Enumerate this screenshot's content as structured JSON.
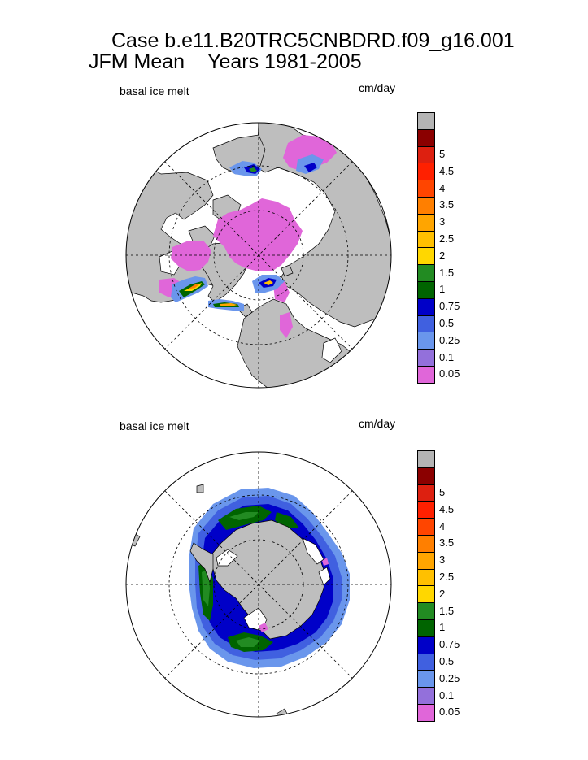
{
  "title": {
    "line1": "Case b.e11.B20TRC5CNBDRD.f09_g16.001",
    "line2_season": "JFM Mean",
    "line2_years": "Years 1981-2005"
  },
  "panels": [
    {
      "name": "north",
      "label": "basal ice melt",
      "units": "cm/day",
      "hemisphere": "Northern"
    },
    {
      "name": "south",
      "label": "basal ice melt",
      "units": "cm/day",
      "hemisphere": "Southern"
    }
  ],
  "colors": {
    "land": "#bebebe",
    "colorbar": [
      "#e066d9",
      "#9370db",
      "#6a96ec",
      "#4060e0",
      "#0000c8",
      "#006400",
      "#228b22",
      "#ffd700",
      "#ffc000",
      "#ffa500",
      "#ff7f00",
      "#ff4500",
      "#ff2000",
      "#dd2010",
      "#8b0000",
      "#b4b4b4"
    ]
  },
  "chart_data": [
    {
      "type": "heatmap",
      "title": "basal ice melt",
      "projection": "north polar stereographic",
      "units": "cm/day",
      "levels": [
        "0.05",
        "0.1",
        "0.25",
        "0.5",
        "0.75",
        "1",
        "1.5",
        "2",
        "2.5",
        "3",
        "3.5",
        "4",
        "4.5",
        "5"
      ],
      "summary": "Arctic basin mostly 0.05 cm/day; higher melt (up to ~3 cm/day) along Labrador Sea, Greenland coast and Barents/Kara ice edge"
    },
    {
      "type": "heatmap",
      "title": "basal ice melt",
      "projection": "south polar stereographic",
      "units": "cm/day",
      "levels": [
        "0.05",
        "0.1",
        "0.25",
        "0.5",
        "0.75",
        "1",
        "1.5",
        "2",
        "2.5",
        "3",
        "3.5",
        "4",
        "4.5",
        "5"
      ],
      "summary": "Ring of 0.25-1 cm/day melt around Antarctica, with 0.75-1 cm/day in the Weddell and Ross seas"
    }
  ]
}
